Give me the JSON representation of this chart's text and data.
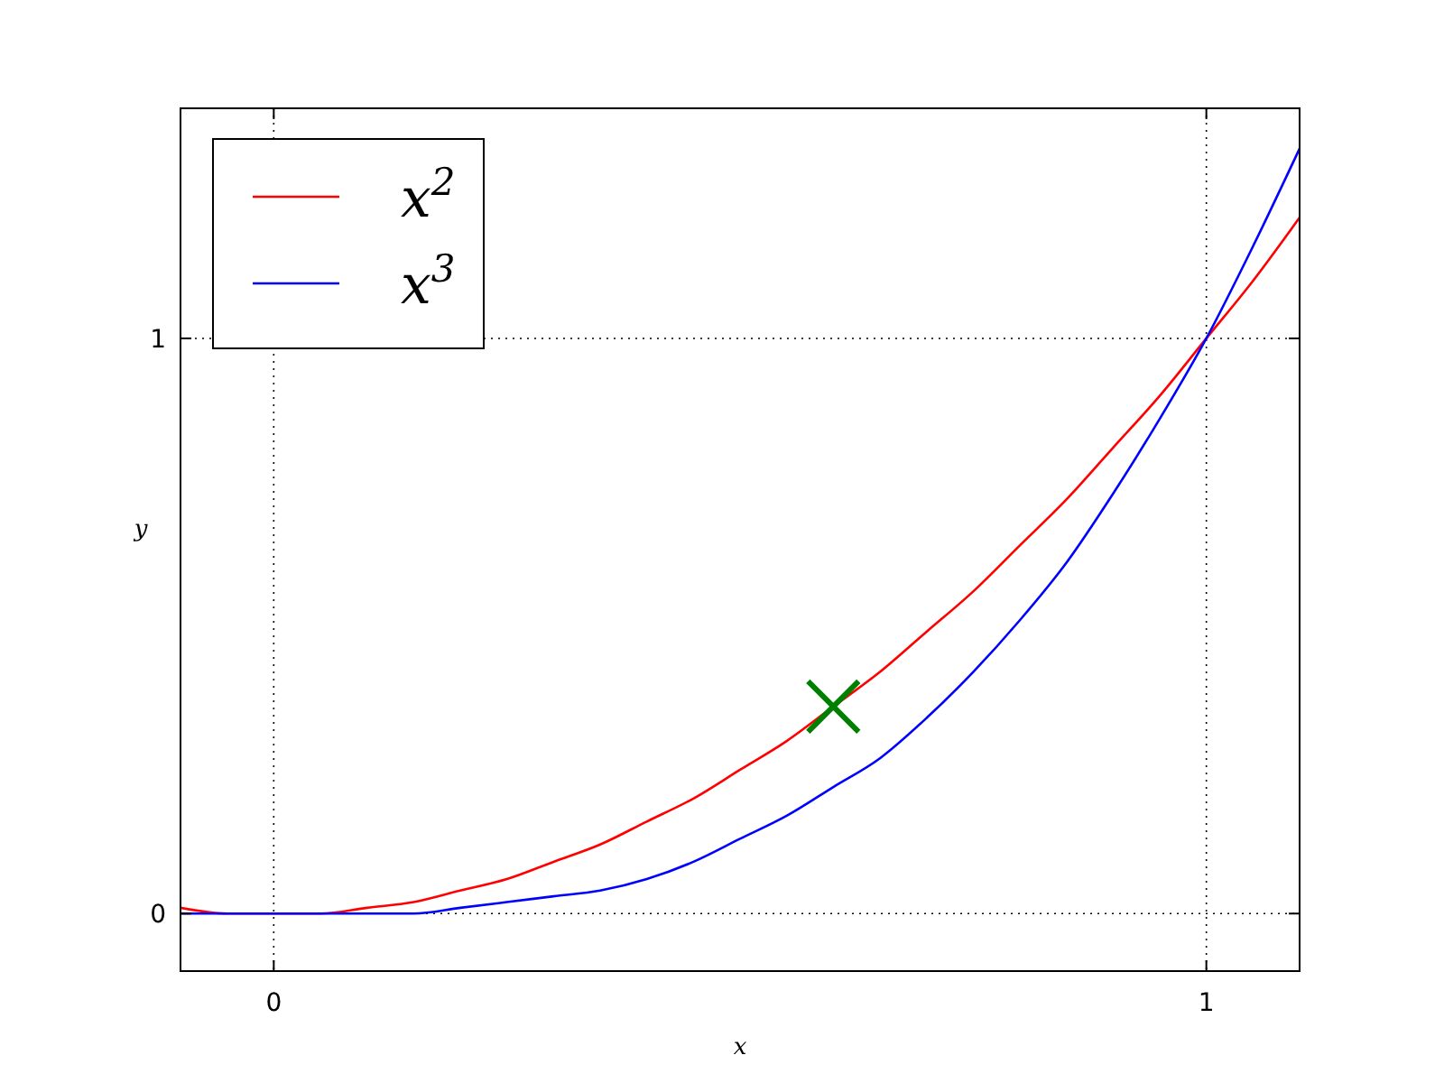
{
  "chart_data": {
    "type": "line",
    "xlabel": "x",
    "ylabel": "y",
    "xlim": [
      -0.1,
      1.1
    ],
    "ylim": [
      -0.1,
      1.4
    ],
    "xticks": [
      0,
      1
    ],
    "yticks": [
      0,
      1
    ],
    "grid": true,
    "legend": "top left",
    "series": [
      {
        "name": "x$^{2}$",
        "color": "#ff0000",
        "x": [
          -0.1,
          -0.05,
          0,
          0.05,
          0.1,
          0.15,
          0.2,
          0.25,
          0.3,
          0.35,
          0.4,
          0.45,
          0.5,
          0.55,
          0.6,
          0.65,
          0.7,
          0.75,
          0.8,
          0.85,
          0.9,
          0.95,
          1,
          1.05,
          1.1
        ],
        "values": [
          0.01,
          0,
          0,
          0,
          0.01,
          0.02,
          0.04,
          0.06,
          0.09,
          0.12,
          0.16,
          0.2,
          0.25,
          0.3,
          0.36,
          0.42,
          0.49,
          0.56,
          0.64,
          0.72,
          0.81,
          0.9,
          1,
          1.1,
          1.21
        ]
      },
      {
        "name": "x$^{3}$",
        "color": "#0000ff",
        "x": [
          -0.1,
          -0.05,
          0,
          0.05,
          0.1,
          0.15,
          0.2,
          0.25,
          0.3,
          0.35,
          0.4,
          0.45,
          0.5,
          0.55,
          0.6,
          0.65,
          0.7,
          0.75,
          0.8,
          0.85,
          0.9,
          0.95,
          1,
          1.05,
          1.1
        ],
        "values": [
          0,
          0,
          0,
          0,
          0,
          0,
          0.01,
          0.02,
          0.03,
          0.04,
          0.06,
          0.09,
          0.13,
          0.17,
          0.22,
          0.27,
          0.34,
          0.42,
          0.51,
          0.61,
          0.73,
          0.86,
          1,
          1.16,
          1.33
        ]
      },
      {
        "type": "scatter",
        "color": "#008000",
        "marker": "cross",
        "x": [
          0.6
        ],
        "values": [
          0.36
        ]
      }
    ]
  }
}
